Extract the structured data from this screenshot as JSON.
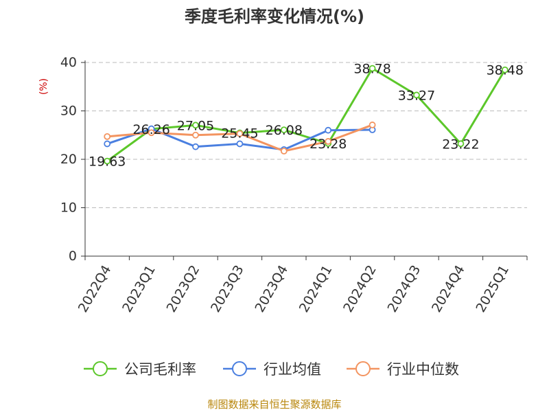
{
  "chart_data": {
    "type": "line",
    "title": "季度毛利率变化情况(%)",
    "ylabel": "(%)",
    "ylim": [
      0,
      40
    ],
    "yticks": [
      0,
      10,
      20,
      30,
      40
    ],
    "grid": "horizontal-dashed",
    "legend_position": "bottom",
    "categories": [
      "2022Q4",
      "2023Q1",
      "2023Q2",
      "2023Q3",
      "2023Q4",
      "2024Q1",
      "2024Q2",
      "2024Q3",
      "2024Q4",
      "2025Q1"
    ],
    "series": [
      {
        "name": "公司毛利率",
        "color": "#5cc72a",
        "values": [
          19.63,
          26.26,
          27.05,
          25.45,
          26.08,
          23.28,
          38.78,
          33.27,
          23.22,
          38.48
        ],
        "labels": [
          "19.63",
          "26.26",
          "27.05",
          "25.45",
          "26.08",
          "23.28",
          "38.78",
          "33.27",
          "23.22",
          "38.48"
        ],
        "segments": [
          [
            0,
            6
          ],
          [
            6,
            9
          ],
          [
            9,
            9
          ]
        ]
      },
      {
        "name": "行业均值",
        "color": "#4a7fe0",
        "values": [
          23.2,
          26.3,
          22.6,
          23.2,
          22.0,
          26.0,
          26.1,
          null,
          null,
          null
        ]
      },
      {
        "name": "行业中位数",
        "color": "#f39460",
        "values": [
          24.7,
          25.5,
          25.0,
          25.3,
          21.7,
          23.7,
          27.1,
          null,
          null,
          null
        ]
      }
    ]
  },
  "source_note": "制图数据来自恒生聚源数据库",
  "colors": {
    "title": "#333333",
    "axis": "#333333",
    "grid": "#bbbbbb",
    "ylabel": "#cc0000",
    "source": "#b8860b"
  }
}
